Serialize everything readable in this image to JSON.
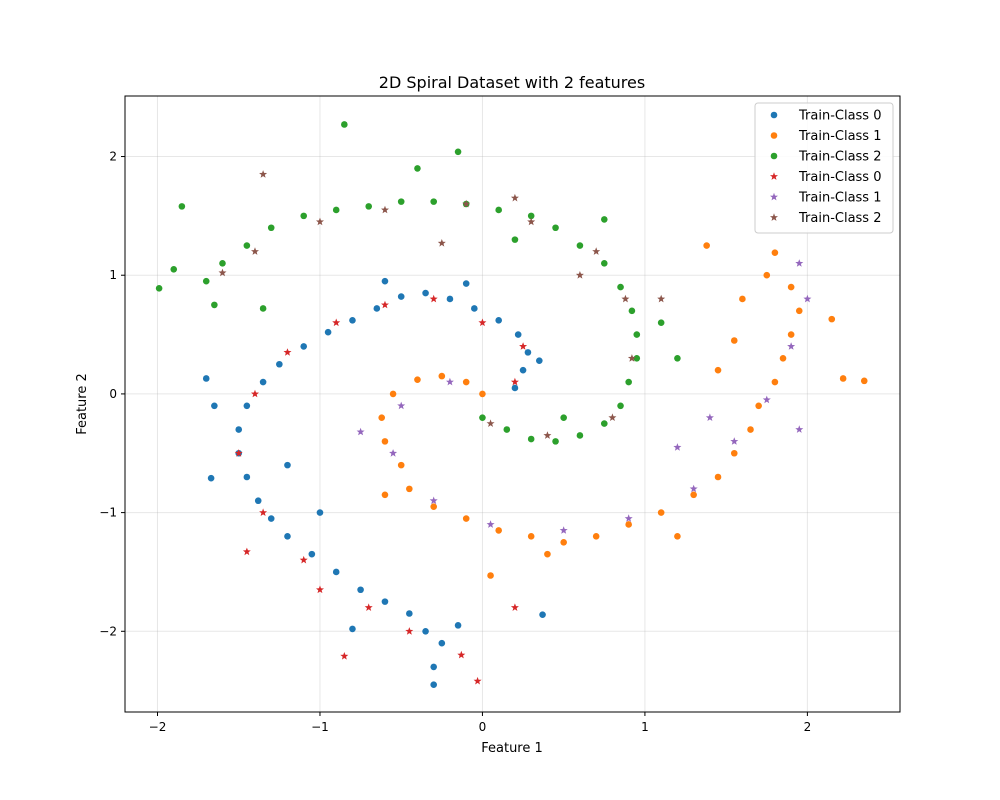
{
  "chart_data": {
    "type": "scatter",
    "title": "2D Spiral Dataset with 2 features",
    "xlabel": "Feature 1",
    "ylabel": "Feature 2",
    "xlim": [
      -2.2,
      2.57
    ],
    "ylim": [
      -2.68,
      2.51
    ],
    "xticks": [
      -2,
      -1,
      0,
      1,
      2
    ],
    "yticks": [
      -2,
      -1,
      0,
      1,
      2
    ],
    "xtick_labels": [
      "−2",
      "−1",
      "0",
      "1",
      "2"
    ],
    "ytick_labels": [
      "−2",
      "−1",
      "0",
      "1",
      "2"
    ],
    "grid": true,
    "legend_placement": "top-right",
    "series": [
      {
        "name": "Train-Class 0",
        "marker": "circle",
        "color": "#1f77b4",
        "points": [
          [
            0.2,
            0.05
          ],
          [
            0.25,
            0.2
          ],
          [
            0.28,
            0.35
          ],
          [
            0.22,
            0.5
          ],
          [
            0.1,
            0.62
          ],
          [
            -0.05,
            0.72
          ],
          [
            -0.2,
            0.8
          ],
          [
            -0.35,
            0.85
          ],
          [
            -0.5,
            0.82
          ],
          [
            -0.65,
            0.72
          ],
          [
            -0.8,
            0.62
          ],
          [
            -0.95,
            0.52
          ],
          [
            -1.1,
            0.4
          ],
          [
            -1.25,
            0.25
          ],
          [
            -1.35,
            0.1
          ],
          [
            -1.45,
            -0.1
          ],
          [
            -1.5,
            -0.3
          ],
          [
            -1.5,
            -0.5
          ],
          [
            -1.45,
            -0.7
          ],
          [
            -1.38,
            -0.9
          ],
          [
            -1.3,
            -1.05
          ],
          [
            -1.2,
            -1.2
          ],
          [
            -1.05,
            -1.35
          ],
          [
            -0.9,
            -1.5
          ],
          [
            -0.75,
            -1.65
          ],
          [
            -0.6,
            -1.75
          ],
          [
            -0.45,
            -1.85
          ],
          [
            -0.35,
            -2.0
          ],
          [
            -0.25,
            -2.1
          ],
          [
            -0.15,
            -1.95
          ],
          [
            -0.3,
            -2.3
          ],
          [
            -0.3,
            -2.45
          ],
          [
            0.37,
            -1.86
          ],
          [
            -1.7,
            0.13
          ],
          [
            -1.67,
            -0.71
          ],
          [
            -0.1,
            0.93
          ],
          [
            -0.6,
            0.95
          ],
          [
            -1.0,
            -1.0
          ],
          [
            -1.2,
            -0.6
          ],
          [
            -0.8,
            -1.98
          ],
          [
            0.35,
            0.28
          ],
          [
            -1.65,
            -0.1
          ]
        ]
      },
      {
        "name": "Train-Class 1",
        "marker": "circle",
        "color": "#ff7f0e",
        "points": [
          [
            0.0,
            0.0
          ],
          [
            -0.1,
            0.1
          ],
          [
            -0.25,
            0.15
          ],
          [
            -0.4,
            0.12
          ],
          [
            -0.55,
            0.0
          ],
          [
            -0.62,
            -0.2
          ],
          [
            -0.6,
            -0.4
          ],
          [
            -0.5,
            -0.6
          ],
          [
            -0.45,
            -0.8
          ],
          [
            -0.3,
            -0.95
          ],
          [
            -0.1,
            -1.05
          ],
          [
            0.1,
            -1.15
          ],
          [
            0.3,
            -1.2
          ],
          [
            0.5,
            -1.25
          ],
          [
            0.7,
            -1.2
          ],
          [
            0.9,
            -1.1
          ],
          [
            1.1,
            -1.0
          ],
          [
            1.3,
            -0.85
          ],
          [
            1.45,
            -0.7
          ],
          [
            1.55,
            -0.5
          ],
          [
            1.65,
            -0.3
          ],
          [
            1.7,
            -0.1
          ],
          [
            1.8,
            0.1
          ],
          [
            1.85,
            0.3
          ],
          [
            1.9,
            0.5
          ],
          [
            1.95,
            0.7
          ],
          [
            1.9,
            0.9
          ],
          [
            1.75,
            1.0
          ],
          [
            1.6,
            0.8
          ],
          [
            1.55,
            0.45
          ],
          [
            2.35,
            0.11
          ],
          [
            2.22,
            0.13
          ],
          [
            2.15,
            0.63
          ],
          [
            1.38,
            1.25
          ],
          [
            0.05,
            -1.53
          ],
          [
            1.8,
            1.19
          ],
          [
            -0.6,
            -0.85
          ],
          [
            1.45,
            0.2
          ],
          [
            1.2,
            -1.2
          ],
          [
            0.4,
            -1.35
          ]
        ]
      },
      {
        "name": "Train-Class 2",
        "marker": "circle",
        "color": "#2ca02c",
        "points": [
          [
            0.0,
            -0.2
          ],
          [
            0.15,
            -0.3
          ],
          [
            0.3,
            -0.38
          ],
          [
            0.45,
            -0.4
          ],
          [
            0.6,
            -0.35
          ],
          [
            0.75,
            -0.25
          ],
          [
            0.85,
            -0.1
          ],
          [
            0.9,
            0.1
          ],
          [
            0.95,
            0.3
          ],
          [
            0.95,
            0.5
          ],
          [
            0.92,
            0.7
          ],
          [
            0.85,
            0.9
          ],
          [
            0.75,
            1.1
          ],
          [
            0.6,
            1.25
          ],
          [
            0.45,
            1.4
          ],
          [
            0.3,
            1.5
          ],
          [
            0.1,
            1.55
          ],
          [
            -0.1,
            1.6
          ],
          [
            -0.3,
            1.62
          ],
          [
            -0.5,
            1.62
          ],
          [
            -0.7,
            1.58
          ],
          [
            -0.9,
            1.55
          ],
          [
            -1.1,
            1.5
          ],
          [
            -1.3,
            1.4
          ],
          [
            -1.45,
            1.25
          ],
          [
            -1.6,
            1.1
          ],
          [
            -1.7,
            0.95
          ],
          [
            -1.85,
            1.58
          ],
          [
            -1.9,
            1.05
          ],
          [
            -1.99,
            0.89
          ],
          [
            -0.85,
            2.27
          ],
          [
            -0.15,
            2.04
          ],
          [
            1.2,
            0.3
          ],
          [
            1.1,
            0.6
          ],
          [
            -1.65,
            0.75
          ],
          [
            0.5,
            -0.2
          ],
          [
            0.75,
            1.47
          ],
          [
            -1.35,
            0.72
          ],
          [
            -0.4,
            1.9
          ],
          [
            0.2,
            1.3
          ]
        ]
      },
      {
        "name": "Train-Class 0",
        "marker": "star",
        "color": "#d62728",
        "points": [
          [
            0.2,
            0.1
          ],
          [
            0.25,
            0.4
          ],
          [
            0.0,
            0.6
          ],
          [
            -0.3,
            0.8
          ],
          [
            -0.6,
            0.75
          ],
          [
            -0.9,
            0.6
          ],
          [
            -1.2,
            0.35
          ],
          [
            -1.4,
            0.0
          ],
          [
            -1.5,
            -0.5
          ],
          [
            -1.35,
            -1.0
          ],
          [
            -1.1,
            -1.4
          ],
          [
            -0.7,
            -1.8
          ],
          [
            -0.45,
            -2.0
          ],
          [
            -0.13,
            -2.2
          ],
          [
            -0.03,
            -2.42
          ],
          [
            -0.85,
            -2.21
          ],
          [
            0.2,
            -1.8
          ],
          [
            -1.45,
            -1.33
          ],
          [
            -1.0,
            -1.65
          ]
        ]
      },
      {
        "name": "Train-Class 1",
        "marker": "star",
        "color": "#9467bd",
        "points": [
          [
            -0.2,
            0.1
          ],
          [
            -0.5,
            -0.1
          ],
          [
            -0.55,
            -0.5
          ],
          [
            -0.3,
            -0.9
          ],
          [
            0.05,
            -1.1
          ],
          [
            0.5,
            -1.15
          ],
          [
            0.9,
            -1.05
          ],
          [
            1.3,
            -0.8
          ],
          [
            1.55,
            -0.4
          ],
          [
            1.75,
            -0.05
          ],
          [
            1.9,
            0.4
          ],
          [
            2.0,
            0.8
          ],
          [
            1.95,
            1.1
          ],
          [
            -0.75,
            -0.32
          ],
          [
            1.2,
            -0.45
          ],
          [
            1.4,
            -0.2
          ],
          [
            1.95,
            -0.3
          ]
        ]
      },
      {
        "name": "Train-Class 2",
        "marker": "star",
        "color": "#8c564b",
        "points": [
          [
            0.05,
            -0.25
          ],
          [
            0.4,
            -0.35
          ],
          [
            0.8,
            -0.2
          ],
          [
            0.92,
            0.3
          ],
          [
            0.88,
            0.8
          ],
          [
            0.7,
            1.2
          ],
          [
            0.3,
            1.45
          ],
          [
            -0.1,
            1.6
          ],
          [
            -0.6,
            1.55
          ],
          [
            -1.0,
            1.45
          ],
          [
            -1.4,
            1.2
          ],
          [
            -1.35,
            1.85
          ],
          [
            -1.6,
            1.02
          ],
          [
            1.1,
            0.8
          ],
          [
            -0.25,
            1.27
          ],
          [
            0.6,
            1.0
          ],
          [
            0.2,
            1.65
          ]
        ]
      }
    ]
  }
}
